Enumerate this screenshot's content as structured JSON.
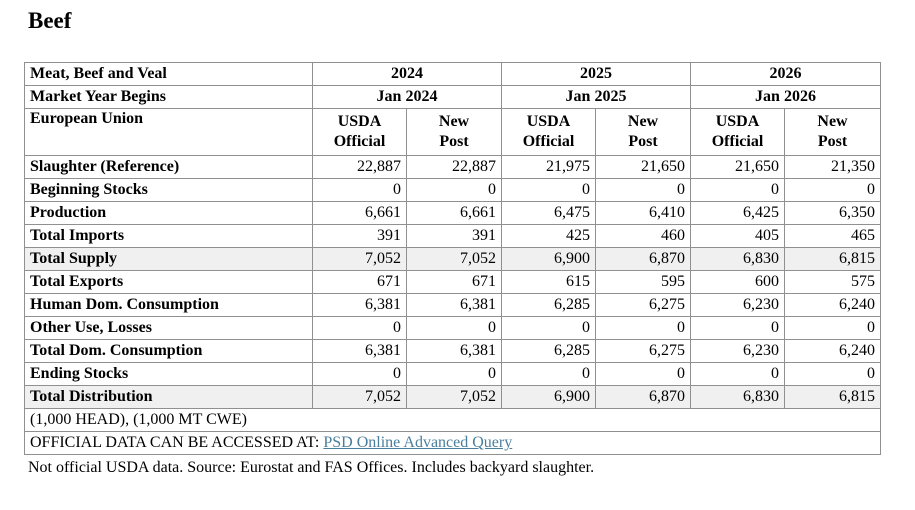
{
  "page": {
    "title": "Beef"
  },
  "colors": {
    "shaded_cell": "#f0f0f0",
    "border": "#909090",
    "link": "#4a7e9d"
  },
  "table": {
    "row1_label": "Meat, Beef and Veal",
    "row2_label": "Market Year Begins",
    "row3_label": "European Union",
    "year_groups": [
      {
        "year": "2024",
        "begins": "Jan 2024"
      },
      {
        "year": "2025",
        "begins": "Jan 2025"
      },
      {
        "year": "2026",
        "begins": "Jan 2026"
      }
    ],
    "subheaders": {
      "official_line1": "USDA",
      "official_line2": "Official",
      "new_post_line1": "New",
      "new_post_line2": "Post"
    },
    "rows": [
      {
        "label": "Slaughter (Reference)",
        "shaded": false,
        "values": [
          "22,887",
          "22,887",
          "21,975",
          "21,650",
          "21,650",
          "21,350"
        ]
      },
      {
        "label": "Beginning Stocks",
        "shaded": false,
        "values": [
          "0",
          "0",
          "0",
          "0",
          "0",
          "0"
        ]
      },
      {
        "label": "Production",
        "shaded": false,
        "values": [
          "6,661",
          "6,661",
          "6,475",
          "6,410",
          "6,425",
          "6,350"
        ]
      },
      {
        "label": "Total Imports",
        "shaded": false,
        "values": [
          "391",
          "391",
          "425",
          "460",
          "405",
          "465"
        ]
      },
      {
        "label": "Total Supply",
        "shaded": true,
        "values": [
          "7,052",
          "7,052",
          "6,900",
          "6,870",
          "6,830",
          "6,815"
        ]
      },
      {
        "label": "Total Exports",
        "shaded": false,
        "values": [
          "671",
          "671",
          "615",
          "595",
          "600",
          "575"
        ]
      },
      {
        "label": "Human Dom. Consumption",
        "shaded": false,
        "values": [
          "6,381",
          "6,381",
          "6,285",
          "6,275",
          "6,230",
          "6,240"
        ]
      },
      {
        "label": "Other Use, Losses",
        "shaded": false,
        "values": [
          "0",
          "0",
          "0",
          "0",
          "0",
          "0"
        ]
      },
      {
        "label": "Total Dom. Consumption",
        "shaded": false,
        "values": [
          "6,381",
          "6,381",
          "6,285",
          "6,275",
          "6,230",
          "6,240"
        ]
      },
      {
        "label": "Ending Stocks",
        "shaded": false,
        "values": [
          "0",
          "0",
          "0",
          "0",
          "0",
          "0"
        ]
      },
      {
        "label": "Total Distribution",
        "shaded": true,
        "values": [
          "7,052",
          "7,052",
          "6,900",
          "6,870",
          "6,830",
          "6,815"
        ]
      }
    ],
    "footer": {
      "units": "(1,000 HEAD), (1,000 MT CWE)",
      "official_prefix": "OFFICIAL DATA CAN BE ACCESSED AT: ",
      "link_text": "PSD Online Advanced Query"
    }
  },
  "note": "Not official USDA data. Source: Eurostat and FAS Offices. Includes backyard slaughter."
}
